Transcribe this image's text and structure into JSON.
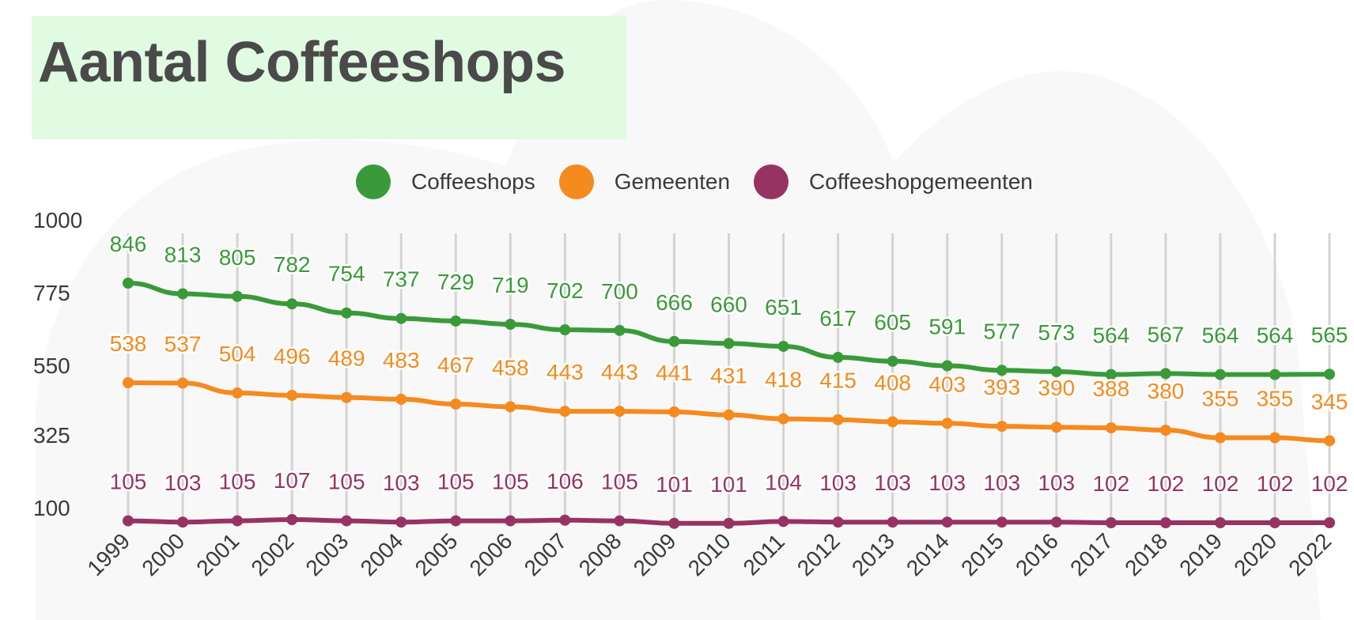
{
  "title": "Aantal Coffeeshops",
  "colors": {
    "background_shape": "#f8f8f8",
    "title_bg": "#e1fae2",
    "title_text": "#4a4a4a",
    "grid": "#d4d4d4",
    "axis_text": "#3a3a3a"
  },
  "legend": [
    {
      "label": "Coffeeshops",
      "color": "#3a9a3a"
    },
    {
      "label": "Gemeenten",
      "color": "#f58a1f"
    },
    {
      "label": "Coffeeshopgemeenten",
      "color": "#973363"
    }
  ],
  "chart_data": {
    "type": "line",
    "title": "Aantal Coffeeshops",
    "x": [
      "1999",
      "2000",
      "2001",
      "2002",
      "2003",
      "2004",
      "2005",
      "2006",
      "2007",
      "2008",
      "2009",
      "2010",
      "2011",
      "2012",
      "2013",
      "2014",
      "2015",
      "2016",
      "2017",
      "2018",
      "2019",
      "2020",
      "2022"
    ],
    "y_ticks": [
      1000,
      775,
      550,
      325,
      100
    ],
    "ylim": [
      100,
      1000
    ],
    "grid": "vertical",
    "legend_position": "top-center",
    "series": [
      {
        "name": "Coffeeshops",
        "color": "#3a9a3a",
        "values": [
          846,
          813,
          805,
          782,
          754,
          737,
          729,
          719,
          702,
          700,
          666,
          660,
          651,
          617,
          605,
          591,
          577,
          573,
          564,
          567,
          564,
          564,
          565
        ]
      },
      {
        "name": "Gemeenten",
        "color": "#f58a1f",
        "values": [
          538,
          537,
          504,
          496,
          489,
          483,
          467,
          458,
          443,
          443,
          441,
          431,
          418,
          415,
          408,
          403,
          393,
          390,
          388,
          380,
          355,
          355,
          345
        ]
      },
      {
        "name": "Coffeeshopgemeenten",
        "color": "#973363",
        "values": [
          105,
          103,
          105,
          107,
          105,
          103,
          105,
          105,
          106,
          105,
          101,
          101,
          104,
          103,
          103,
          103,
          103,
          103,
          102,
          102,
          102,
          102,
          102
        ]
      }
    ]
  }
}
